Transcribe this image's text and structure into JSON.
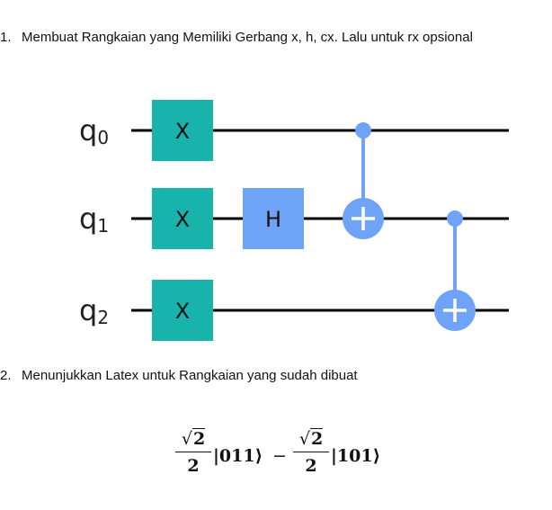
{
  "items": [
    {
      "number": "1.",
      "text": "Membuat Rangkaian yang Memiliki Gerbang x, h, cx. Lalu untuk rx opsional"
    },
    {
      "number": "2.",
      "text": "Menunjukkan Latex untuk Rangkaian yang sudah dibuat"
    }
  ],
  "circuit": {
    "qubits": [
      {
        "letter": "q",
        "index": "0"
      },
      {
        "letter": "q",
        "index": "1"
      },
      {
        "letter": "q",
        "index": "2"
      }
    ],
    "gates": [
      {
        "type": "X",
        "label": "X",
        "qubit": 0
      },
      {
        "type": "X",
        "label": "X",
        "qubit": 1
      },
      {
        "type": "X",
        "label": "X",
        "qubit": 2
      },
      {
        "type": "H",
        "label": "H",
        "qubit": 1
      },
      {
        "type": "CX",
        "control": 0,
        "target": 1
      },
      {
        "type": "CX",
        "control": 1,
        "target": 2
      }
    ],
    "colors": {
      "x_gate": "#18b4ac",
      "h_gate": "#6fa3f7",
      "cx": "#6fa3f7",
      "wire": "#000000"
    }
  },
  "equation": {
    "term1": {
      "sqrt_sign": "√",
      "sqrt_arg": "2",
      "denominator": "2",
      "ket": "|011⟩"
    },
    "operator": "−",
    "term2": {
      "sqrt_sign": "√",
      "sqrt_arg": "2",
      "denominator": "2",
      "ket": "|101⟩"
    }
  }
}
